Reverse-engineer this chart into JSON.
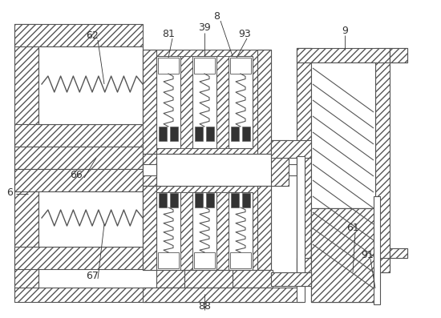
{
  "bg_color": "#ffffff",
  "lc": "#555555",
  "lw": 0.8,
  "fig_w": 5.5,
  "fig_h": 3.97,
  "dpi": 100
}
